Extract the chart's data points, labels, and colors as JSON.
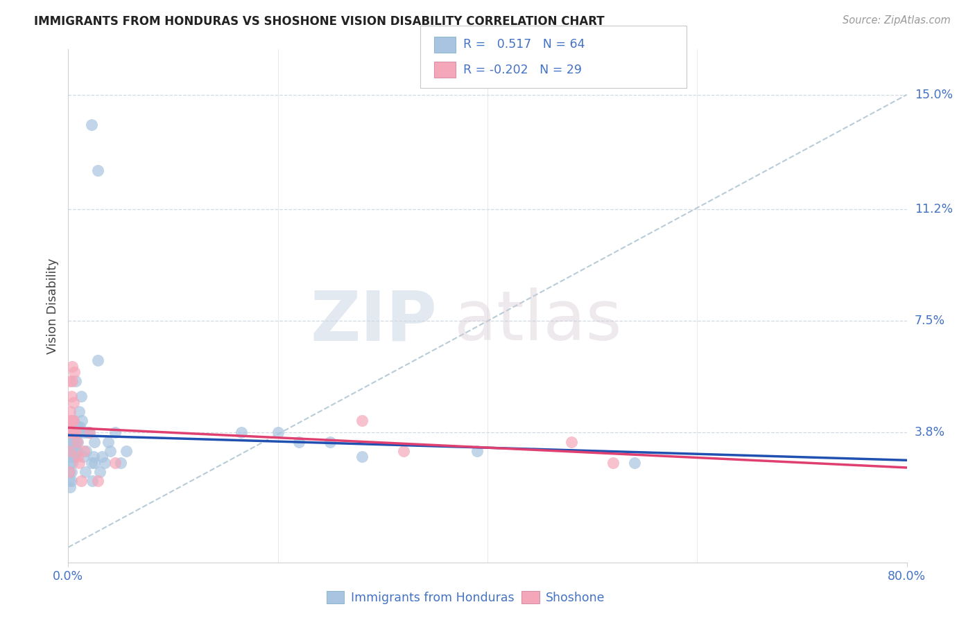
{
  "title": "IMMIGRANTS FROM HONDURAS VS SHOSHONE VISION DISABILITY CORRELATION CHART",
  "source": "Source: ZipAtlas.com",
  "ylabel": "Vision Disability",
  "legend1_R": "0.517",
  "legend1_N": "64",
  "legend2_R": "-0.202",
  "legend2_N": "29",
  "color_blue": "#a8c4e0",
  "color_pink": "#f4a7b9",
  "line_blue": "#2050b0",
  "line_pink": "#e04070",
  "line_diagonal": "#b8ccd8",
  "legend_label1": "Immigrants from Honduras",
  "legend_label2": "Shoshone",
  "blue_x": [
    0.001,
    0.001,
    0.001,
    0.001,
    0.002,
    0.002,
    0.002,
    0.002,
    0.002,
    0.003,
    0.003,
    0.003,
    0.003,
    0.003,
    0.004,
    0.004,
    0.004,
    0.005,
    0.005,
    0.005,
    0.006,
    0.006,
    0.006,
    0.007,
    0.007,
    0.007,
    0.008,
    0.008,
    0.009,
    0.009,
    0.01,
    0.01,
    0.011,
    0.012,
    0.013,
    0.014,
    0.015,
    0.016,
    0.017,
    0.018,
    0.02,
    0.022,
    0.023,
    0.024,
    0.025,
    0.025,
    0.028,
    0.03,
    0.032,
    0.035,
    0.038,
    0.04,
    0.045,
    0.05,
    0.055,
    0.022,
    0.028,
    0.165,
    0.2,
    0.22,
    0.25,
    0.28,
    0.39,
    0.54
  ],
  "blue_y": [
    0.03,
    0.025,
    0.035,
    0.022,
    0.02,
    0.032,
    0.028,
    0.033,
    0.04,
    0.022,
    0.025,
    0.03,
    0.031,
    0.038,
    0.03,
    0.028,
    0.035,
    0.03,
    0.035,
    0.042,
    0.03,
    0.032,
    0.038,
    0.032,
    0.035,
    0.055,
    0.032,
    0.038,
    0.035,
    0.04,
    0.038,
    0.045,
    0.04,
    0.05,
    0.042,
    0.03,
    0.038,
    0.025,
    0.032,
    0.038,
    0.038,
    0.028,
    0.022,
    0.03,
    0.035,
    0.028,
    0.062,
    0.025,
    0.03,
    0.028,
    0.035,
    0.032,
    0.038,
    0.028,
    0.032,
    0.14,
    0.125,
    0.038,
    0.038,
    0.035,
    0.035,
    0.03,
    0.032,
    0.028
  ],
  "pink_x": [
    0.001,
    0.001,
    0.001,
    0.002,
    0.002,
    0.002,
    0.003,
    0.003,
    0.003,
    0.004,
    0.004,
    0.004,
    0.005,
    0.005,
    0.006,
    0.006,
    0.007,
    0.008,
    0.009,
    0.01,
    0.012,
    0.015,
    0.02,
    0.028,
    0.045,
    0.28,
    0.32,
    0.48,
    0.52
  ],
  "pink_y": [
    0.032,
    0.025,
    0.038,
    0.055,
    0.042,
    0.045,
    0.05,
    0.042,
    0.038,
    0.06,
    0.055,
    0.042,
    0.048,
    0.042,
    0.038,
    0.058,
    0.038,
    0.035,
    0.03,
    0.028,
    0.022,
    0.032,
    0.038,
    0.022,
    0.028,
    0.042,
    0.032,
    0.035,
    0.028
  ],
  "xmin": 0.0,
  "xmax": 0.8,
  "ymin": -0.005,
  "ymax": 0.165,
  "ytick_vals": [
    0.038,
    0.075,
    0.112,
    0.15
  ],
  "ytick_labels": [
    "3.8%",
    "7.5%",
    "11.2%",
    "15.0%"
  ],
  "xtick_vals": [
    0.0,
    0.8
  ],
  "xtick_labels": [
    "0.0%",
    "80.0%"
  ]
}
